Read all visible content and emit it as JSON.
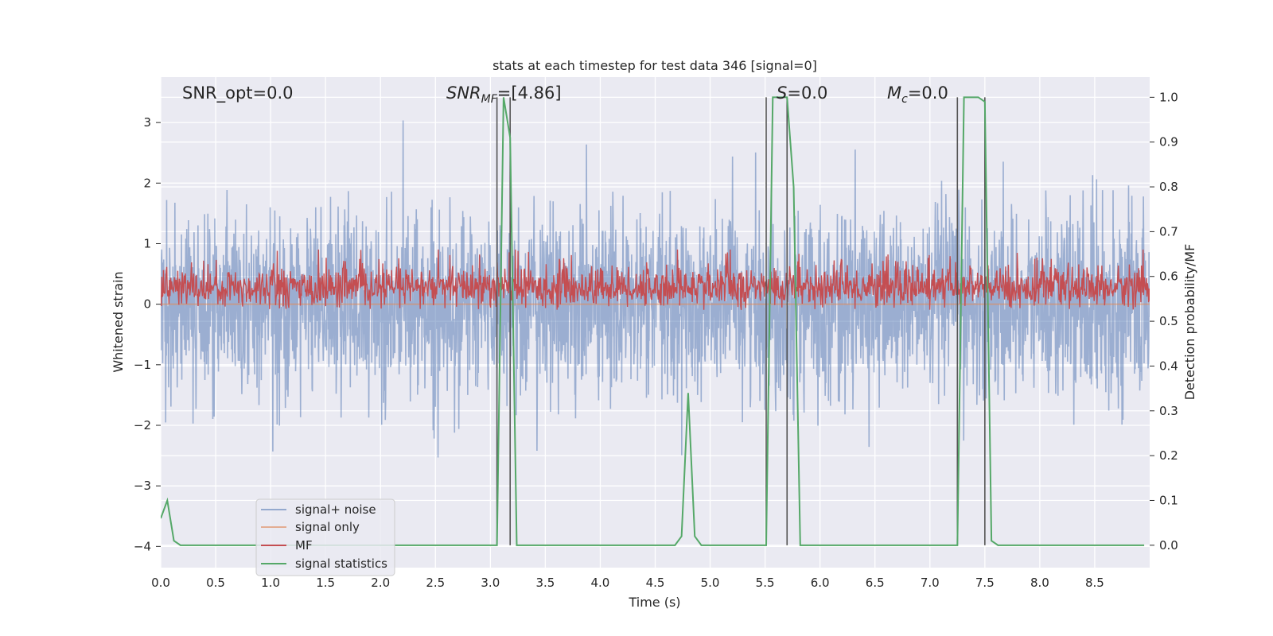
{
  "chart_data": {
    "type": "line",
    "title": "stats at each timestep for test data 346 [signal=0]",
    "xlabel": "Time (s)",
    "ylabel": "Whitened strain",
    "ylabel_right": "Detection probability/MF",
    "xlim": [
      0.0,
      9.0
    ],
    "ylim_left": [
      -4.35,
      3.75
    ],
    "ylim_right": [
      -0.05,
      1.045
    ],
    "grid": true,
    "legend_position": "lower-left",
    "xticks": [
      "0.0",
      "0.5",
      "1.0",
      "1.5",
      "2.0",
      "2.5",
      "3.0",
      "3.5",
      "4.0",
      "4.5",
      "5.0",
      "5.5",
      "6.0",
      "6.5",
      "7.0",
      "7.5",
      "8.0",
      "8.5"
    ],
    "yticks_left": [
      "3",
      "2",
      "1",
      "0",
      "−1",
      "−2",
      "−3",
      "−4"
    ],
    "yticks_right": [
      "1.0",
      "0.9",
      "0.8",
      "0.7",
      "0.6",
      "0.5",
      "0.4",
      "0.3",
      "0.2",
      "0.1",
      "0.0"
    ],
    "annotations": {
      "snr_opt": "SNR_opt=0.0",
      "snr_mf_main": "SNR",
      "snr_mf_sub": "MF",
      "snr_mf_value": "=[4.86]",
      "s_label": "S",
      "s_value": "=0.0",
      "mc_label": "M",
      "mc_sub": "c",
      "mc_value": "=0.0"
    },
    "vertical_lines_x": [
      3.06,
      3.18,
      5.51,
      5.7,
      7.25,
      7.5
    ],
    "series": [
      {
        "name": "signal+ noise",
        "color": "#4c72b0",
        "note_style": "dense noise band, amplitude ~1.2 typical with spikes to about ±3",
        "noise_std": 0.75
      },
      {
        "name": "signal only",
        "color": "#dd8452",
        "constant_value": 0.0
      },
      {
        "name": "MF",
        "color": "#c44e52",
        "note_style": "noisy trace between ~0.52 and ~0.65 on right axis"
      },
      {
        "name": "signal statistics",
        "color": "#55a868",
        "axis": "right",
        "x": [
          0.0,
          0.06,
          0.12,
          0.18,
          3.06,
          3.12,
          3.18,
          3.24,
          4.68,
          4.74,
          4.8,
          4.86,
          4.92,
          5.51,
          5.57,
          5.64,
          5.7,
          5.76,
          5.82,
          7.25,
          7.31,
          7.37,
          7.44,
          7.5,
          7.56,
          7.62,
          8.95
        ],
        "y": [
          0.06,
          0.1,
          0.01,
          0.0,
          0.0,
          1.0,
          0.91,
          0.0,
          0.0,
          0.02,
          0.34,
          0.02,
          0.0,
          0.0,
          1.0,
          1.0,
          1.0,
          0.8,
          0.0,
          0.0,
          1.0,
          1.0,
          1.0,
          0.99,
          0.01,
          0.0,
          0.0
        ]
      }
    ]
  }
}
